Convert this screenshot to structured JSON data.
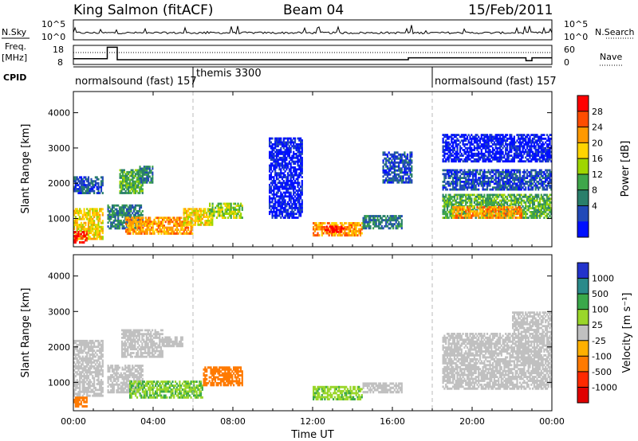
{
  "header": {
    "station": "King Salmon (fitACF)",
    "beam": "Beam 04",
    "date": "15/Feb/2011"
  },
  "top_panel": {
    "nsky_label": "N.Sky",
    "nsearch_label": "N.Search",
    "left_ticks": [
      "10^5",
      "10^0"
    ],
    "right_ticks": [
      "10^5",
      "10^0"
    ],
    "freq_label_1": "Freq.",
    "freq_label_2": "[MHz]",
    "freq_ticks": [
      "18",
      "8"
    ],
    "nave_label": "Nave",
    "nave_ticks": [
      "60",
      "0"
    ],
    "cpid_label": "CPID",
    "cpid_segments": [
      {
        "label": "normalsound (fast) 157",
        "start_hour": 0,
        "end_hour": 6
      },
      {
        "label": "themis 3300",
        "start_hour": 6,
        "end_hour": 18
      },
      {
        "label": "normalsound (fast) 157",
        "start_hour": 18,
        "end_hour": 24
      }
    ]
  },
  "power_panel": {
    "ylabel": "Slant Range [km]",
    "colorbar_label": "Power [dB]",
    "colorbar_ticks": [
      "28",
      "24",
      "20",
      "16",
      "12",
      "8",
      "4"
    ],
    "colors": [
      "#ff0000",
      "#ff4d00",
      "#ff9900",
      "#ffd400",
      "#9fd600",
      "#3fa64a",
      "#2a7f6b",
      "#2249b8",
      "#0010ff"
    ]
  },
  "velocity_panel": {
    "ylabel": "Slant Range [km]",
    "colorbar_label": "Velocity [m s⁻¹]",
    "colorbar_ticks": [
      "1000",
      "500",
      "100",
      "25",
      "-25",
      "-100",
      "-500",
      "-1000"
    ],
    "colors": [
      "#2233cc",
      "#2a8a8a",
      "#3aa84a",
      "#9ad62a",
      "#c0c0c0",
      "#ffb000",
      "#ff7a00",
      "#ff2a00",
      "#e00000"
    ]
  },
  "axes": {
    "y_ticks": [
      "1000",
      "2000",
      "3000",
      "4000"
    ],
    "x_ticks": [
      "00:00",
      "04:00",
      "08:00",
      "12:00",
      "16:00",
      "20:00",
      "00:00"
    ],
    "xlabel": "Time UT"
  },
  "chart_data": {
    "type": "heatmap",
    "x_unit": "hours UT",
    "xlim": [
      0,
      24
    ],
    "ylim": [
      200,
      4600
    ],
    "y_unit": "km",
    "mode_changes_hour": [
      6,
      18
    ],
    "frequency_mhz": [
      {
        "start_hour": 0,
        "end_hour": 1.7,
        "value": 11
      },
      {
        "start_hour": 1.7,
        "end_hour": 2.2,
        "value": 17
      },
      {
        "start_hour": 2.2,
        "end_hour": 16.8,
        "value": 10.5
      },
      {
        "start_hour": 16.8,
        "end_hour": 17.9,
        "value": 11.5
      },
      {
        "start_hour": 17.9,
        "end_hour": 22.7,
        "value": 11.5
      },
      {
        "start_hour": 22.7,
        "end_hour": 23.0,
        "value": 10
      },
      {
        "start_hour": 23.0,
        "end_hour": 24,
        "value": 11.5
      }
    ],
    "power_regions": [
      {
        "t0": 0.0,
        "t1": 1.5,
        "r0": 400,
        "r1": 1300,
        "level": 5
      },
      {
        "t0": 0.0,
        "t1": 0.7,
        "r0": 300,
        "r1": 650,
        "level": 8
      },
      {
        "t0": 0.0,
        "t1": 1.5,
        "r0": 1700,
        "r1": 2200,
        "level": 1
      },
      {
        "t0": 1.7,
        "t1": 3.5,
        "r0": 700,
        "r1": 1400,
        "level": 2
      },
      {
        "t0": 2.3,
        "t1": 3.5,
        "r0": 1700,
        "r1": 2400,
        "level": 3
      },
      {
        "t0": 3.3,
        "t1": 4.0,
        "r0": 2000,
        "r1": 2500,
        "level": 2
      },
      {
        "t0": 2.6,
        "t1": 6.0,
        "r0": 550,
        "r1": 1050,
        "level": 6
      },
      {
        "t0": 5.5,
        "t1": 7.0,
        "r0": 800,
        "r1": 1300,
        "level": 5
      },
      {
        "t0": 6.8,
        "t1": 8.5,
        "r0": 1000,
        "r1": 1450,
        "level": 4
      },
      {
        "t0": 9.8,
        "t1": 11.5,
        "r0": 1000,
        "r1": 3300,
        "level": 0
      },
      {
        "t0": 12.0,
        "t1": 14.5,
        "r0": 500,
        "r1": 900,
        "level": 6
      },
      {
        "t0": 12.6,
        "t1": 13.6,
        "r0": 600,
        "r1": 800,
        "level": 8
      },
      {
        "t0": 14.5,
        "t1": 16.5,
        "r0": 700,
        "r1": 1100,
        "level": 2
      },
      {
        "t0": 15.5,
        "t1": 17.0,
        "r0": 2000,
        "r1": 2900,
        "level": 1
      },
      {
        "t0": 18.5,
        "t1": 24.0,
        "r0": 1000,
        "r1": 1700,
        "level": 3
      },
      {
        "t0": 19.0,
        "t1": 22.5,
        "r0": 1000,
        "r1": 1350,
        "level": 6
      },
      {
        "t0": 18.5,
        "t1": 24.0,
        "r0": 1800,
        "r1": 2400,
        "level": 1
      },
      {
        "t0": 18.5,
        "t1": 24.0,
        "r0": 2600,
        "r1": 3400,
        "level": 0
      }
    ],
    "velocity_regions": [
      {
        "t0": 0.0,
        "t1": 1.5,
        "r0": 600,
        "r1": 2200,
        "v": 0
      },
      {
        "t0": 0.0,
        "t1": 0.7,
        "r0": 300,
        "r1": 600,
        "v": -150
      },
      {
        "t0": 1.7,
        "t1": 3.5,
        "r0": 700,
        "r1": 1500,
        "v": 0
      },
      {
        "t0": 2.4,
        "t1": 4.5,
        "r0": 1700,
        "r1": 2500,
        "v": 0
      },
      {
        "t0": 4.5,
        "t1": 5.5,
        "r0": 2000,
        "r1": 2300,
        "v": 0
      },
      {
        "t0": 2.8,
        "t1": 6.5,
        "r0": 550,
        "r1": 1050,
        "v": 90
      },
      {
        "t0": 6.5,
        "t1": 8.5,
        "r0": 900,
        "r1": 1450,
        "v": -150
      },
      {
        "t0": 12.0,
        "t1": 14.5,
        "r0": 500,
        "r1": 900,
        "v": 80
      },
      {
        "t0": 14.5,
        "t1": 16.5,
        "r0": 700,
        "r1": 1000,
        "v": 0
      },
      {
        "t0": 18.5,
        "t1": 24.0,
        "r0": 800,
        "r1": 2400,
        "v": 0
      },
      {
        "t0": 22.0,
        "t1": 24.0,
        "r0": 2400,
        "r1": 3000,
        "v": 0
      }
    ]
  }
}
